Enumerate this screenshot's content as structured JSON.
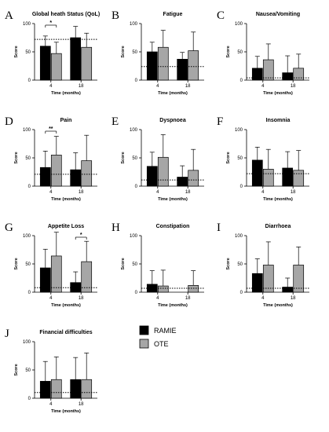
{
  "colors": {
    "RAMIE": "#000000",
    "OTE": "#a6a6a6"
  },
  "legend": [
    {
      "name": "RAMIE",
      "color": "#000000"
    },
    {
      "name": "OTE",
      "color": "#a6a6a6"
    }
  ],
  "chart_data": [
    {
      "id": "A",
      "type": "bar",
      "title": "Global heath Status (QoL)",
      "xlabel": "Time (months)",
      "ylabel": "Score",
      "ylim": [
        0,
        100
      ],
      "yticks": [
        "0",
        "50",
        "100"
      ],
      "categories": [
        "4",
        "18"
      ],
      "reference": 72,
      "series": [
        {
          "name": "RAMIE",
          "values": [
            60,
            75
          ],
          "errors": [
            18,
            20
          ]
        },
        {
          "name": "OTE",
          "values": [
            47,
            58
          ],
          "errors": [
            20,
            25
          ]
        }
      ],
      "annotations": [
        {
          "label": "*",
          "category": "4"
        }
      ]
    },
    {
      "id": "B",
      "type": "bar",
      "title": "Fatigue",
      "xlabel": "Time (months)",
      "ylabel": "Score",
      "ylim": [
        0,
        100
      ],
      "yticks": [
        "0",
        "50",
        "100"
      ],
      "categories": [
        "4",
        "18"
      ],
      "reference": 24,
      "series": [
        {
          "name": "RAMIE",
          "values": [
            50,
            37
          ],
          "errors": [
            17,
            12
          ]
        },
        {
          "name": "OTE",
          "values": [
            58,
            52
          ],
          "errors": [
            30,
            33
          ]
        }
      ],
      "annotations": []
    },
    {
      "id": "C",
      "type": "bar",
      "title": "Nausea/Vomiting",
      "xlabel": "Time (months)",
      "ylabel": "Score",
      "ylim": [
        0,
        100
      ],
      "yticks": [
        "0",
        "50",
        "100"
      ],
      "categories": [
        "4",
        "18"
      ],
      "reference": 4,
      "series": [
        {
          "name": "RAMIE",
          "values": [
            21,
            13
          ],
          "errors": [
            21,
            30
          ]
        },
        {
          "name": "OTE",
          "values": [
            36,
            21
          ],
          "errors": [
            28,
            25
          ]
        }
      ],
      "annotations": []
    },
    {
      "id": "D",
      "type": "bar",
      "title": "Pain",
      "xlabel": "Time (months)",
      "ylabel": "Score",
      "ylim": [
        0,
        100
      ],
      "yticks": [
        "0",
        "50",
        "100"
      ],
      "categories": [
        "4",
        "18"
      ],
      "reference": 21,
      "series": [
        {
          "name": "RAMIE",
          "values": [
            33,
            29
          ],
          "errors": [
            29,
            30
          ]
        },
        {
          "name": "OTE",
          "values": [
            55,
            45
          ],
          "errors": [
            33,
            45
          ]
        }
      ],
      "annotations": [
        {
          "label": "**",
          "category": "4"
        }
      ]
    },
    {
      "id": "E",
      "type": "bar",
      "title": "Dyspnoea",
      "xlabel": "Time (months)",
      "ylabel": "Score",
      "ylim": [
        0,
        100
      ],
      "yticks": [
        "0",
        "50",
        "100"
      ],
      "categories": [
        "4",
        "18"
      ],
      "reference": 11,
      "series": [
        {
          "name": "RAMIE",
          "values": [
            35,
            16
          ],
          "errors": [
            25,
            20
          ]
        },
        {
          "name": "OTE",
          "values": [
            51,
            28
          ],
          "errors": [
            40,
            37
          ]
        }
      ],
      "annotations": []
    },
    {
      "id": "F",
      "type": "bar",
      "title": "Insomnia",
      "xlabel": "Time (months)",
      "ylabel": "Score",
      "ylim": [
        0,
        100
      ],
      "yticks": [
        "0",
        "50",
        "100"
      ],
      "categories": [
        "4",
        "18"
      ],
      "reference": 22,
      "series": [
        {
          "name": "RAMIE",
          "values": [
            46,
            32
          ],
          "errors": [
            23,
            29
          ]
        },
        {
          "name": "OTE",
          "values": [
            30,
            28
          ],
          "errors": [
            35,
            35
          ]
        }
      ],
      "annotations": []
    },
    {
      "id": "G",
      "type": "bar",
      "title": "Appetite Loss",
      "xlabel": "Time (months)",
      "ylabel": "Score",
      "ylim": [
        0,
        100
      ],
      "yticks": [
        "0",
        "50",
        "100"
      ],
      "categories": [
        "4",
        "18"
      ],
      "reference": 8,
      "series": [
        {
          "name": "RAMIE",
          "values": [
            43,
            17
          ],
          "errors": [
            33,
            19
          ]
        },
        {
          "name": "OTE",
          "values": [
            64,
            54
          ],
          "errors": [
            42,
            36
          ]
        }
      ],
      "annotations": [
        {
          "label": "*",
          "category": "18"
        }
      ]
    },
    {
      "id": "H",
      "type": "bar",
      "title": "Constipation",
      "xlabel": "Time (months)",
      "ylabel": "Score",
      "ylim": [
        0,
        100
      ],
      "yticks": [
        "0",
        "50",
        "100"
      ],
      "categories": [
        "4",
        "18"
      ],
      "reference": 7,
      "series": [
        {
          "name": "RAMIE",
          "values": [
            14,
            0
          ],
          "errors": [
            24,
            0
          ]
        },
        {
          "name": "OTE",
          "values": [
            11,
            12
          ],
          "errors": [
            28,
            26
          ]
        }
      ],
      "annotations": []
    },
    {
      "id": "I",
      "type": "bar",
      "title": "Diarrhoea",
      "xlabel": "Time (months)",
      "ylabel": "Score",
      "ylim": [
        0,
        100
      ],
      "yticks": [
        "0",
        "50",
        "100"
      ],
      "categories": [
        "4",
        "18"
      ],
      "reference": 7,
      "series": [
        {
          "name": "RAMIE",
          "values": [
            33,
            9
          ],
          "errors": [
            26,
            16
          ]
        },
        {
          "name": "OTE",
          "values": [
            48,
            48
          ],
          "errors": [
            41,
            32
          ]
        }
      ],
      "annotations": []
    },
    {
      "id": "J",
      "type": "bar",
      "title": "Financial difficulties",
      "xlabel": "Time (months)",
      "ylabel": "Score",
      "ylim": [
        0,
        100
      ],
      "yticks": [
        "0",
        "50",
        "100"
      ],
      "categories": [
        "4",
        "18"
      ],
      "reference": 10,
      "series": [
        {
          "name": "RAMIE",
          "values": [
            30,
            33
          ],
          "errors": [
            35,
            39
          ]
        },
        {
          "name": "OTE",
          "values": [
            33,
            33
          ],
          "errors": [
            40,
            47
          ]
        }
      ],
      "annotations": []
    }
  ]
}
